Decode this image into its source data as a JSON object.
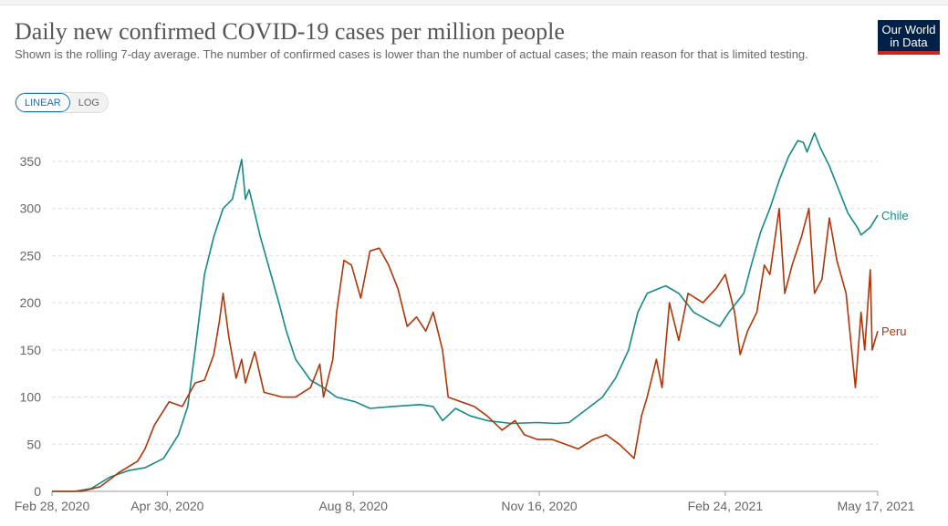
{
  "header": {
    "title": "Daily new confirmed COVID-19 cases per million people",
    "subtitle": "Shown is the rolling 7-day average. The number of confirmed cases is lower than the number of actual cases; the main reason for that is limited testing.",
    "logo": "Our World in Data"
  },
  "scale_toggle": {
    "linear": "LINEAR",
    "log": "LOG",
    "selected": "LINEAR"
  },
  "chart_data": {
    "type": "line",
    "title": "Daily new confirmed COVID-19 cases per million people",
    "xlim": [
      "2020-02-28",
      "2021-05-17"
    ],
    "ylim": [
      0,
      380
    ],
    "x_ticks": [
      "Feb 28, 2020",
      "Apr 30, 2020",
      "Aug 8, 2020",
      "Nov 16, 2020",
      "Feb 24, 2021",
      "May 17, 2021"
    ],
    "x_tick_dates": [
      "2020-02-28",
      "2020-04-30",
      "2020-08-08",
      "2020-11-16",
      "2021-02-24",
      "2021-05-17"
    ],
    "y_ticks": [
      0,
      50,
      100,
      150,
      200,
      250,
      300,
      350
    ],
    "grid": "horizontal",
    "legend": "end-of-line labels",
    "series": [
      {
        "name": "Chile",
        "color": "#148a8a",
        "points": [
          [
            "2020-02-28",
            0
          ],
          [
            "2020-03-11",
            0
          ],
          [
            "2020-03-20",
            3
          ],
          [
            "2020-03-30",
            15
          ],
          [
            "2020-04-09",
            22
          ],
          [
            "2020-04-18",
            25
          ],
          [
            "2020-04-28",
            35
          ],
          [
            "2020-05-06",
            60
          ],
          [
            "2020-05-11",
            90
          ],
          [
            "2020-05-15",
            150
          ],
          [
            "2020-05-20",
            230
          ],
          [
            "2020-05-25",
            270
          ],
          [
            "2020-05-30",
            300
          ],
          [
            "2020-06-04",
            310
          ],
          [
            "2020-06-09",
            352
          ],
          [
            "2020-06-11",
            310
          ],
          [
            "2020-06-13",
            320
          ],
          [
            "2020-06-19",
            270
          ],
          [
            "2020-06-24",
            235
          ],
          [
            "2020-06-29",
            200
          ],
          [
            "2020-07-03",
            170
          ],
          [
            "2020-07-08",
            140
          ],
          [
            "2020-07-16",
            118
          ],
          [
            "2020-07-23",
            110
          ],
          [
            "2020-07-30",
            100
          ],
          [
            "2020-08-09",
            95
          ],
          [
            "2020-08-17",
            88
          ],
          [
            "2020-08-29",
            90
          ],
          [
            "2020-09-13",
            92
          ],
          [
            "2020-09-20",
            90
          ],
          [
            "2020-09-25",
            75
          ],
          [
            "2020-10-02",
            88
          ],
          [
            "2020-10-10",
            80
          ],
          [
            "2020-10-19",
            75
          ],
          [
            "2020-11-01",
            72
          ],
          [
            "2020-11-15",
            73
          ],
          [
            "2020-11-25",
            72
          ],
          [
            "2020-12-02",
            73
          ],
          [
            "2020-12-10",
            85
          ],
          [
            "2020-12-20",
            100
          ],
          [
            "2020-12-27",
            120
          ],
          [
            "2021-01-03",
            150
          ],
          [
            "2021-01-08",
            190
          ],
          [
            "2021-01-13",
            210
          ],
          [
            "2021-01-23",
            218
          ],
          [
            "2021-01-30",
            210
          ],
          [
            "2021-02-07",
            190
          ],
          [
            "2021-02-16",
            180
          ],
          [
            "2021-02-21",
            175
          ],
          [
            "2021-02-26",
            190
          ],
          [
            "2021-03-06",
            210
          ],
          [
            "2021-03-10",
            240
          ],
          [
            "2021-03-15",
            275
          ],
          [
            "2021-03-20",
            300
          ],
          [
            "2021-03-25",
            330
          ],
          [
            "2021-03-30",
            355
          ],
          [
            "2021-04-04",
            372
          ],
          [
            "2021-04-07",
            370
          ],
          [
            "2021-04-09",
            360
          ],
          [
            "2021-04-13",
            380
          ],
          [
            "2021-04-16",
            365
          ],
          [
            "2021-04-21",
            345
          ],
          [
            "2021-04-26",
            320
          ],
          [
            "2021-05-01",
            295
          ],
          [
            "2021-05-06",
            280
          ],
          [
            "2021-05-08",
            272
          ],
          [
            "2021-05-13",
            280
          ],
          [
            "2021-05-17",
            293
          ]
        ]
      },
      {
        "name": "Peru",
        "color": "#b13507",
        "points": [
          [
            "2020-02-28",
            0
          ],
          [
            "2020-03-15",
            0
          ],
          [
            "2020-03-25",
            5
          ],
          [
            "2020-04-04",
            20
          ],
          [
            "2020-04-14",
            32
          ],
          [
            "2020-04-18",
            45
          ],
          [
            "2020-04-23",
            70
          ],
          [
            "2020-05-01",
            95
          ],
          [
            "2020-05-08",
            90
          ],
          [
            "2020-05-15",
            115
          ],
          [
            "2020-05-20",
            118
          ],
          [
            "2020-05-25",
            145
          ],
          [
            "2020-05-28",
            180
          ],
          [
            "2020-05-30",
            210
          ],
          [
            "2020-06-02",
            165
          ],
          [
            "2020-06-06",
            120
          ],
          [
            "2020-06-09",
            140
          ],
          [
            "2020-06-11",
            115
          ],
          [
            "2020-06-16",
            148
          ],
          [
            "2020-06-21",
            105
          ],
          [
            "2020-07-01",
            100
          ],
          [
            "2020-07-08",
            100
          ],
          [
            "2020-07-16",
            110
          ],
          [
            "2020-07-21",
            135
          ],
          [
            "2020-07-23",
            100
          ],
          [
            "2020-07-28",
            140
          ],
          [
            "2020-07-30",
            190
          ],
          [
            "2020-08-03",
            245
          ],
          [
            "2020-08-07",
            240
          ],
          [
            "2020-08-12",
            205
          ],
          [
            "2020-08-17",
            255
          ],
          [
            "2020-08-22",
            258
          ],
          [
            "2020-08-27",
            240
          ],
          [
            "2020-09-01",
            215
          ],
          [
            "2020-09-06",
            175
          ],
          [
            "2020-09-11",
            185
          ],
          [
            "2020-09-16",
            170
          ],
          [
            "2020-09-20",
            190
          ],
          [
            "2020-09-25",
            150
          ],
          [
            "2020-09-28",
            100
          ],
          [
            "2020-10-05",
            95
          ],
          [
            "2020-10-12",
            90
          ],
          [
            "2020-10-19",
            80
          ],
          [
            "2020-10-27",
            65
          ],
          [
            "2020-11-03",
            75
          ],
          [
            "2020-11-08",
            60
          ],
          [
            "2020-11-15",
            55
          ],
          [
            "2020-11-23",
            55
          ],
          [
            "2020-11-30",
            50
          ],
          [
            "2020-12-07",
            45
          ],
          [
            "2020-12-15",
            55
          ],
          [
            "2020-12-22",
            60
          ],
          [
            "2020-12-29",
            50
          ],
          [
            "2021-01-06",
            35
          ],
          [
            "2021-01-10",
            80
          ],
          [
            "2021-01-13",
            100
          ],
          [
            "2021-01-18",
            140
          ],
          [
            "2021-01-21",
            110
          ],
          [
            "2021-01-25",
            200
          ],
          [
            "2021-01-30",
            160
          ],
          [
            "2021-02-04",
            210
          ],
          [
            "2021-02-12",
            200
          ],
          [
            "2021-02-19",
            215
          ],
          [
            "2021-02-24",
            230
          ],
          [
            "2021-03-01",
            190
          ],
          [
            "2021-03-04",
            145
          ],
          [
            "2021-03-08",
            170
          ],
          [
            "2021-03-13",
            190
          ],
          [
            "2021-03-17",
            240
          ],
          [
            "2021-03-20",
            230
          ],
          [
            "2021-03-25",
            300
          ],
          [
            "2021-03-28",
            210
          ],
          [
            "2021-04-01",
            240
          ],
          [
            "2021-04-06",
            270
          ],
          [
            "2021-04-10",
            300
          ],
          [
            "2021-04-13",
            210
          ],
          [
            "2021-04-17",
            225
          ],
          [
            "2021-04-21",
            290
          ],
          [
            "2021-04-25",
            245
          ],
          [
            "2021-04-30",
            210
          ],
          [
            "2021-05-05",
            110
          ],
          [
            "2021-05-08",
            190
          ],
          [
            "2021-05-10",
            150
          ],
          [
            "2021-05-13",
            235
          ],
          [
            "2021-05-14",
            150
          ],
          [
            "2021-05-17",
            170
          ]
        ]
      }
    ]
  }
}
